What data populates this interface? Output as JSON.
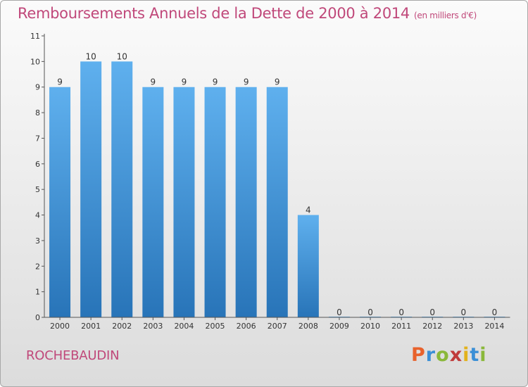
{
  "header": {
    "title": "Remboursements Annuels de la Dette de 2000 à 2014",
    "unit": "(en milliers d'€)"
  },
  "footer": {
    "commune": "ROCHEBAUDIN",
    "logo_text": "Proxiti",
    "logo_colors": [
      "#e8622c",
      "#3a8fd6",
      "#8ab83a",
      "#c03b3b",
      "#e2b21c",
      "#3a8fd6",
      "#8ab83a"
    ]
  },
  "colors": {
    "title": "#c0487a",
    "bar_top": "#5fb0ee",
    "bar_bottom": "#2874b8",
    "axis": "#555555"
  },
  "chart_data": {
    "type": "bar",
    "categories": [
      "2000",
      "2001",
      "2002",
      "2003",
      "2004",
      "2005",
      "2006",
      "2007",
      "2008",
      "2009",
      "2010",
      "2011",
      "2012",
      "2013",
      "2014"
    ],
    "values": [
      9,
      10,
      10,
      9,
      9,
      9,
      9,
      9,
      4,
      0,
      0,
      0,
      0,
      0,
      0
    ],
    "data_labels": [
      "9",
      "10",
      "10",
      "9",
      "9",
      "9",
      "9",
      "9",
      "4",
      "0",
      "0",
      "0",
      "0",
      "0",
      "0"
    ],
    "yticks": [
      0,
      1,
      2,
      3,
      4,
      5,
      6,
      7,
      8,
      9,
      10,
      11
    ],
    "ylim": [
      0,
      11
    ],
    "title": "Remboursements Annuels de la Dette de 2000 à 2014",
    "xlabel": "",
    "ylabel": "",
    "grid": false,
    "legend": "none"
  }
}
